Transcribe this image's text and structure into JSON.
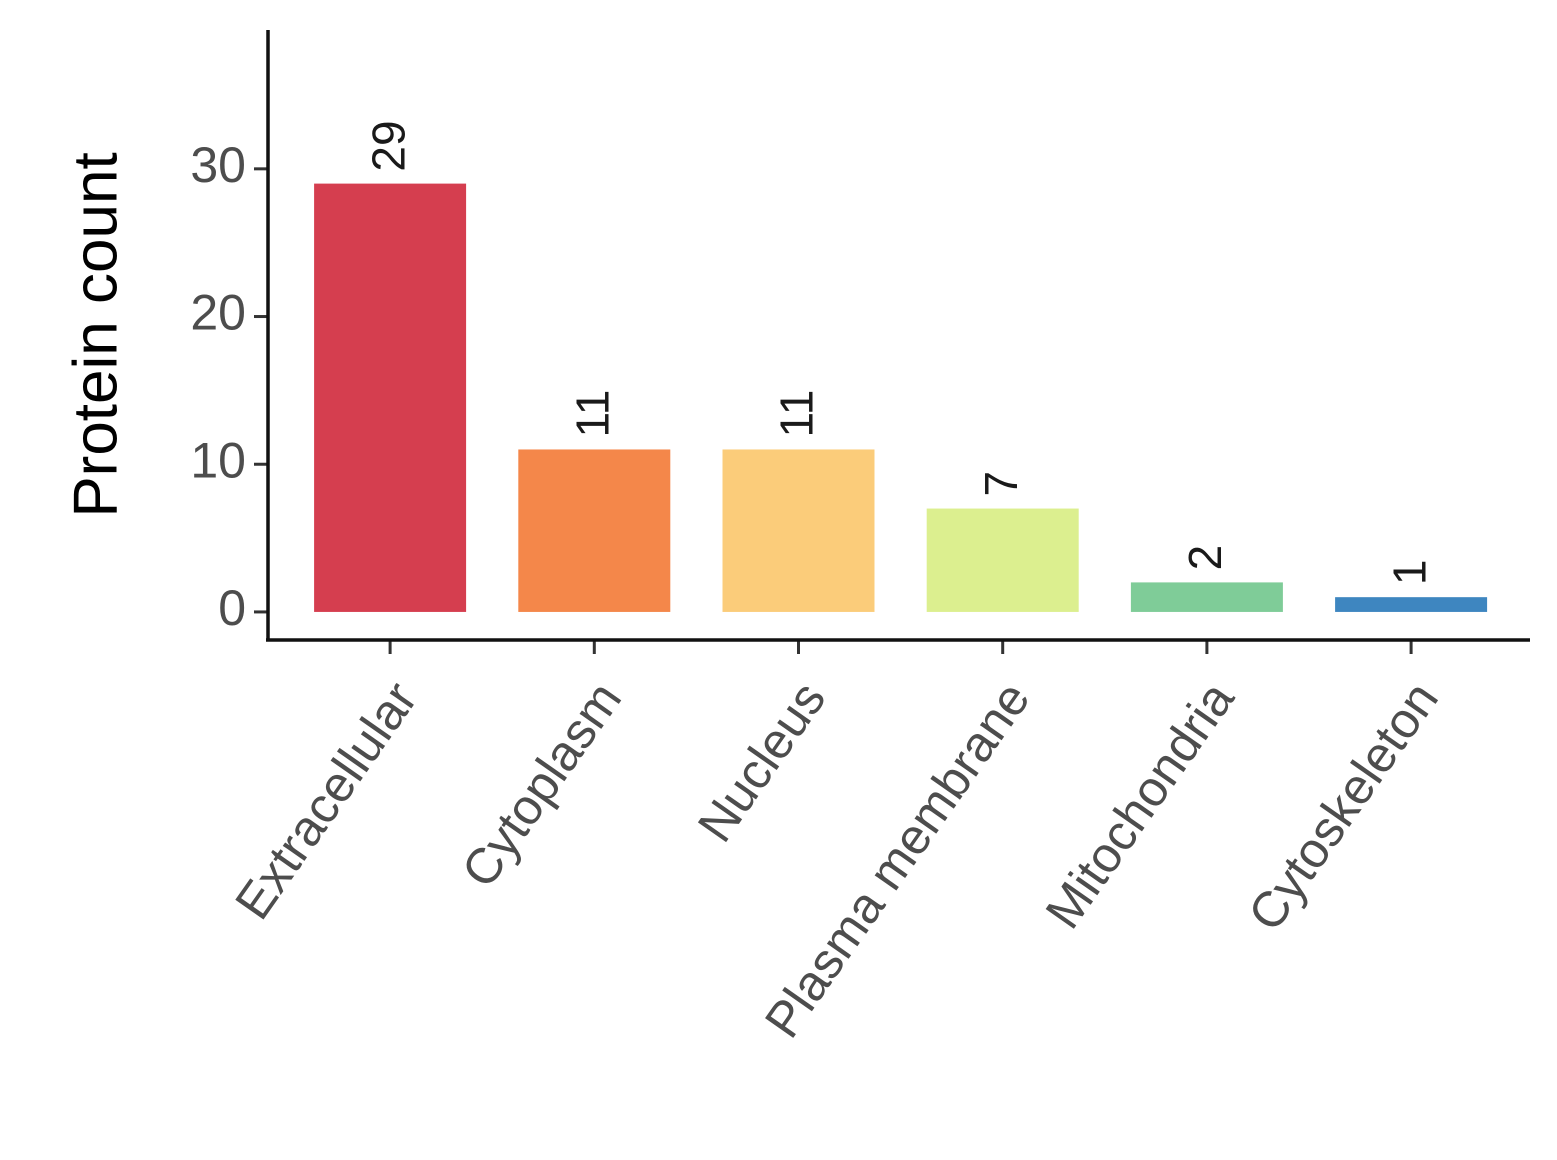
{
  "chart_data": {
    "type": "bar",
    "y_label": "Protein count",
    "categories": [
      "Extracellular",
      "Cytoplasm",
      "Nucleus",
      "Plasma membrane",
      "Mitochondria",
      "Cytoskeleton"
    ],
    "values": [
      29,
      11,
      11,
      7,
      2,
      1
    ],
    "colors": [
      "#d53e4f",
      "#f4874a",
      "#fbcc7a",
      "#dcef8f",
      "#7fcc98",
      "#3e86c0"
    ],
    "ylim": [
      -1.9,
      39.4
    ],
    "yticks": [
      0,
      10,
      20,
      30
    ],
    "grid": false
  }
}
